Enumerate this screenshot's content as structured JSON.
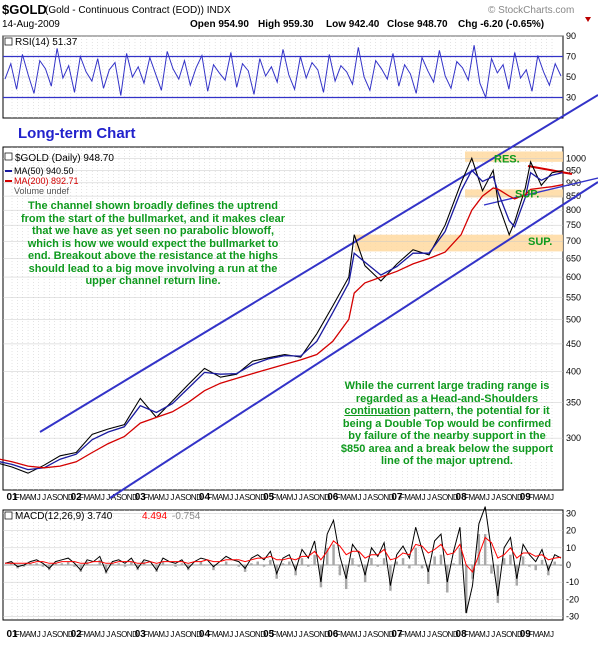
{
  "header": {
    "symbol": "$GOLD",
    "description": "(Gold - Continuous Contract (EOD)) INDX",
    "date": "14-Aug-2009",
    "open_label": "Open",
    "open": "954.90",
    "high_label": "High",
    "high": "959.30",
    "low_label": "Low",
    "low": "942.40",
    "close_label": "Close",
    "close": "948.70",
    "chg_label": "Chg",
    "chg": "-6.20 (-0.65%)",
    "watermark": "© StockCharts.com"
  },
  "colors": {
    "price": "#000000",
    "ma50": "#1a1aa0",
    "ma200": "#d40000",
    "channel": "#3333c8",
    "rsi": "#3333c8",
    "macd": "#000000",
    "macd_signal": "#ff0000",
    "histogram": "#a8a8a8",
    "zone": "#ffd9a0",
    "annotation_text": "#0f9a1e",
    "grid": "#c8c8c8"
  },
  "chart_data": [
    {
      "type": "line",
      "panel": "rsi",
      "legend": "RSI(14) 51.37",
      "ylim": [
        10,
        90
      ],
      "ticks": [
        90,
        70,
        50,
        30
      ],
      "reference_lines": [
        70,
        30
      ],
      "series": [
        {
          "name": "RSI(14)",
          "values": [
            48,
            63,
            38,
            72,
            52,
            34,
            66,
            58,
            41,
            78,
            49,
            61,
            35,
            70,
            55,
            46,
            68,
            39,
            57,
            64,
            32,
            73,
            50,
            60,
            44,
            69,
            53,
            37,
            75,
            58,
            48,
            66,
            42,
            59,
            71,
            36,
            62,
            54,
            47,
            74,
            40,
            63,
            56,
            33,
            68,
            51,
            60,
            45,
            77,
            52,
            38,
            70,
            49,
            64,
            57,
            35,
            72,
            46,
            61,
            55,
            43,
            79,
            50,
            37,
            66,
            58,
            48,
            73,
            41,
            62,
            53,
            34,
            69,
            56,
            45,
            76,
            51,
            39,
            65,
            59,
            47,
            81,
            44,
            30,
            68,
            54,
            62,
            38,
            74,
            49,
            57,
            36,
            71,
            55,
            42,
            63,
            51
          ]
        }
      ]
    },
    {
      "type": "line",
      "panel": "price",
      "title": "Long-term Chart",
      "legend": [
        "$GOLD (Daily) 948.70",
        "MA(50) 940.50",
        "MA(200) 892.71",
        "Volume undef"
      ],
      "yscale": "log",
      "ylim": [
        240,
        1050
      ],
      "yticks": [
        1000,
        950,
        900,
        850,
        800,
        750,
        700,
        650,
        600,
        550,
        500,
        450,
        400,
        350,
        300
      ],
      "x": [
        "2000-10",
        "2001-01",
        "2001-04",
        "2001-07",
        "2001-10",
        "2002-01",
        "2002-04",
        "2002-07",
        "2002-10",
        "2003-01",
        "2003-04",
        "2003-07",
        "2003-10",
        "2004-01",
        "2004-04",
        "2004-07",
        "2004-10",
        "2005-01",
        "2005-04",
        "2005-07",
        "2005-10",
        "2006-01",
        "2006-04",
        "2006-05",
        "2006-07",
        "2006-10",
        "2007-01",
        "2007-04",
        "2007-07",
        "2007-10",
        "2008-01",
        "2008-03",
        "2008-05",
        "2008-07",
        "2008-08",
        "2008-10",
        "2008-11",
        "2009-01",
        "2009-02",
        "2009-04",
        "2009-06",
        "2009-08"
      ],
      "series": [
        {
          "name": "$GOLD (Daily)",
          "values": [
            270,
            265,
            258,
            267,
            278,
            282,
            305,
            312,
            318,
            356,
            328,
            352,
            378,
            405,
            390,
            395,
            418,
            424,
            430,
            425,
            470,
            530,
            600,
            720,
            630,
            590,
            635,
            675,
            660,
            750,
            900,
            1000,
            870,
            950,
            820,
            720,
            760,
            880,
            985,
            890,
            940,
            948.7
          ]
        },
        {
          "name": "MA(50)",
          "values": [
            272,
            268,
            262,
            264,
            274,
            280,
            298,
            308,
            315,
            345,
            335,
            348,
            372,
            398,
            395,
            396,
            412,
            422,
            428,
            427,
            455,
            515,
            585,
            665,
            640,
            605,
            628,
            665,
            665,
            730,
            870,
            950,
            905,
            925,
            860,
            765,
            745,
            845,
            940,
            910,
            930,
            940.5
          ]
        },
        {
          "name": "MA(200)",
          "values": [
            275,
            271,
            266,
            264,
            266,
            271,
            282,
            293,
            302,
            320,
            328,
            336,
            350,
            368,
            380,
            388,
            396,
            404,
            412,
            420,
            430,
            455,
            500,
            560,
            585,
            600,
            615,
            635,
            650,
            668,
            720,
            800,
            850,
            880,
            875,
            850,
            840,
            855,
            875,
            880,
            885,
            892.71
          ]
        }
      ],
      "labels": {
        "resistance": "RES.",
        "support_upper": "SUP.",
        "support_lower": "SUP."
      }
    },
    {
      "type": "line",
      "panel": "macd",
      "legend": [
        "MACD(12,26,9)",
        "3.740",
        "4.494",
        "-0.754"
      ],
      "ylim": [
        -32,
        32
      ],
      "yticks": [
        30,
        20,
        10,
        0,
        -10,
        -20,
        -30
      ],
      "series": [
        {
          "name": "MACD(12,26,9)",
          "values": [
            1,
            2,
            -1,
            0,
            2,
            3,
            1,
            -2,
            2,
            3,
            4,
            1,
            -3,
            3,
            2,
            5,
            -4,
            2,
            3,
            1,
            4,
            -2,
            3,
            2,
            -3,
            4,
            2,
            1,
            3,
            -2,
            2,
            4,
            3,
            -1,
            2,
            5,
            3,
            2,
            -2,
            4,
            6,
            3,
            8,
            -5,
            4,
            6,
            -3,
            9,
            4,
            14,
            -10,
            18,
            26,
            5,
            -8,
            12,
            7,
            -6,
            10,
            5,
            13,
            -12,
            6,
            11,
            4,
            22,
            9,
            -4,
            14,
            18,
            -10,
            8,
            22,
            -28,
            -12,
            24,
            34,
            8,
            -18,
            10,
            16,
            -8,
            12,
            6,
            2,
            9,
            -3,
            6,
            4
          ]
        },
        {
          "name": "Signal",
          "values": [
            1,
            1,
            1,
            1,
            1,
            2,
            2,
            1,
            1,
            2,
            2,
            2,
            1,
            1,
            2,
            2,
            1,
            1,
            2,
            2,
            2,
            1,
            1,
            2,
            1,
            2,
            2,
            2,
            2,
            1,
            2,
            2,
            3,
            2,
            2,
            3,
            3,
            3,
            2,
            3,
            4,
            4,
            5,
            3,
            3,
            4,
            3,
            5,
            5,
            8,
            3,
            8,
            14,
            11,
            6,
            8,
            8,
            4,
            6,
            6,
            9,
            3,
            4,
            7,
            6,
            12,
            11,
            7,
            9,
            12,
            6,
            7,
            12,
            0,
            -4,
            6,
            16,
            13,
            4,
            6,
            10,
            4,
            7,
            7,
            5,
            6,
            3,
            4,
            4.494
          ]
        }
      ]
    }
  ],
  "x_axis": {
    "labels": [
      "01",
      "F",
      "M",
      "A",
      "M",
      "J",
      "J",
      "A",
      "S",
      "O",
      "N",
      "D",
      "02",
      "F",
      "M",
      "A",
      "M",
      "J",
      "J",
      "A",
      "S",
      "O",
      "N",
      "D",
      "03",
      "F",
      "M",
      "A",
      "M",
      "J",
      "J",
      "A",
      "S",
      "O",
      "N",
      "D",
      "04",
      "F",
      "M",
      "A",
      "M",
      "J",
      "J",
      "A",
      "S",
      "O",
      "N",
      "D",
      "05",
      "F",
      "M",
      "A",
      "M",
      "J",
      "J",
      "A",
      "S",
      "O",
      "N",
      "D",
      "06",
      "F",
      "M",
      "A",
      "M",
      "J",
      "J",
      "A",
      "S",
      "O",
      "N",
      "D",
      "07",
      "F",
      "M",
      "A",
      "M",
      "J",
      "J",
      "A",
      "S",
      "O",
      "N",
      "D",
      "08",
      "F",
      "M",
      "A",
      "M",
      "J",
      "J",
      "A",
      "S",
      "O",
      "N",
      "D",
      "09",
      "F",
      "M",
      "A",
      "M",
      "J"
    ],
    "short": [
      "O",
      "01",
      "A",
      "J",
      "O",
      "02",
      "A",
      "J",
      "O",
      "03",
      "A",
      "J",
      "O",
      "04",
      "A",
      "J",
      "O",
      "05",
      "A",
      "J",
      "O",
      "06",
      "A",
      "J",
      "O",
      "07",
      "A",
      "J",
      "O",
      "08",
      "A",
      "J",
      "O",
      "09",
      "A",
      "J"
    ]
  },
  "annotations": {
    "top_note": "The channel shown broadly defines the uptrend from the start of the bullmarket, and it makes clear that we have as yet seen no parabolic blowoff, which is how we would expect the bullmarket to end. Breakout above the resistance at the highs should lead to a big move involving a run at the upper channel return line.",
    "bottom_note_1": "While the current large trading range is regarded as a Head-and-Shoulders ",
    "bottom_note_link": "continuation",
    "bottom_note_2": " pattern, the potential for it being a Double Top would be confirmed by failure of the nearby support in the $850 area and a break below the support line of the major uptrend."
  }
}
